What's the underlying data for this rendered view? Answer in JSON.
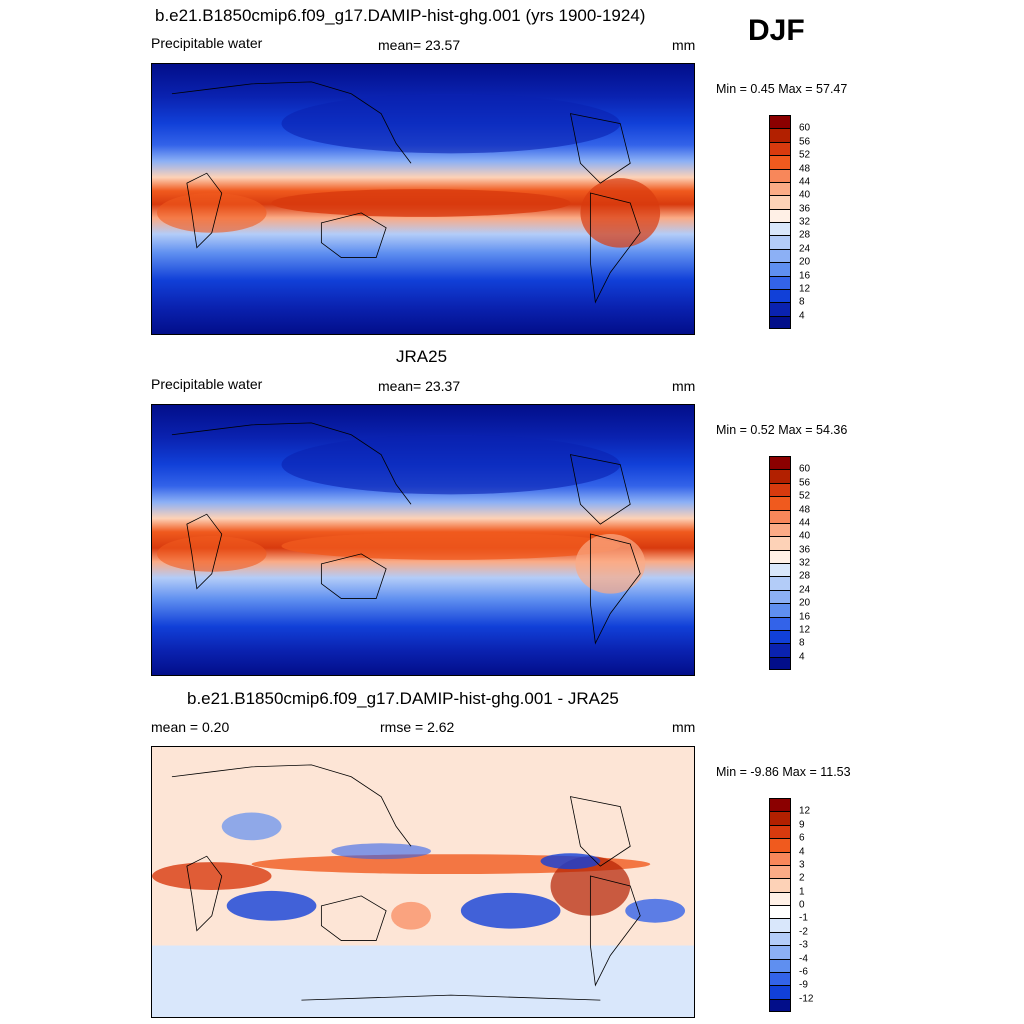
{
  "season": "DJF",
  "panels": [
    {
      "title": "b.e21.B1850cmip6.f09_g17.DAMIP-hist-ghg.001 (yrs 1900-1924)",
      "left_label": "Precipitable water",
      "center_label": "mean=  23.57",
      "units": "mm",
      "minmax": "Min =   0.45 Max =  57.47",
      "colorbar_ticks": [
        "60",
        "56",
        "52",
        "48",
        "44",
        "40",
        "36",
        "32",
        "28",
        "24",
        "20",
        "16",
        "12",
        "8",
        "4"
      ],
      "colorbar_colors": [
        "#8b0000",
        "#b22000",
        "#d83a0e",
        "#f05a1e",
        "#f8875a",
        "#fbab86",
        "#fdd2b7",
        "#fff0e6",
        "#d9e7fb",
        "#b3ccf8",
        "#8cb0f5",
        "#5f8ff0",
        "#3363e9",
        "#1140d8",
        "#0a22b0",
        "#020e8a"
      ]
    },
    {
      "title": "JRA25",
      "left_label": "Precipitable water",
      "center_label": "mean=  23.37",
      "units": "mm",
      "minmax": "Min =   0.52 Max =  54.36",
      "colorbar_ticks": [
        "60",
        "56",
        "52",
        "48",
        "44",
        "40",
        "36",
        "32",
        "28",
        "24",
        "20",
        "16",
        "12",
        "8",
        "4"
      ],
      "colorbar_colors": [
        "#8b0000",
        "#b22000",
        "#d83a0e",
        "#f05a1e",
        "#f8875a",
        "#fbab86",
        "#fdd2b7",
        "#fff0e6",
        "#d9e7fb",
        "#b3ccf8",
        "#8cb0f5",
        "#5f8ff0",
        "#3363e9",
        "#1140d8",
        "#0a22b0",
        "#020e8a"
      ]
    },
    {
      "title": "b.e21.B1850cmip6.f09_g17.DAMIP-hist-ghg.001 - JRA25",
      "left_label": "mean =   0.20",
      "center_label": "rmse =   2.62",
      "units": "mm",
      "minmax": "Min =  -9.86 Max =  11.53",
      "colorbar_ticks": [
        "12",
        "9",
        "6",
        "4",
        "3",
        "2",
        "1",
        "0",
        "-1",
        "-2",
        "-3",
        "-4",
        "-6",
        "-9",
        "-12"
      ],
      "colorbar_colors": [
        "#8b0000",
        "#b22000",
        "#d83a0e",
        "#f05a1e",
        "#f8875a",
        "#fbab86",
        "#fdd2b7",
        "#fff0e6",
        "#ffffff",
        "#d9e7fb",
        "#b3ccf8",
        "#8cb0f5",
        "#5f8ff0",
        "#3363e9",
        "#1140d8",
        "#020e8a"
      ]
    }
  ]
}
